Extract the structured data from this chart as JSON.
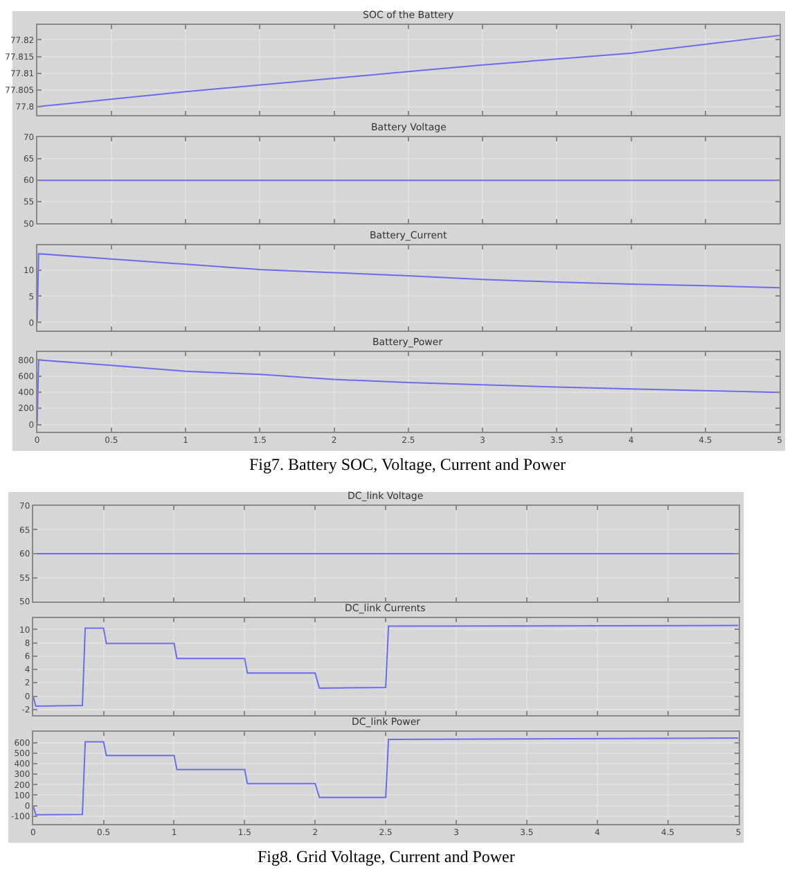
{
  "chart_data": [
    {
      "type": "line",
      "title": "SOC of the Battery",
      "x": [
        0,
        1,
        2,
        2.5,
        3,
        4,
        5
      ],
      "series": [
        {
          "color": "#6b6bf0",
          "values": [
            77.8,
            77.8045,
            77.8085,
            77.8105,
            77.8125,
            77.816,
            77.8213
          ]
        }
      ],
      "xlim": [
        0,
        5
      ],
      "xticks": [
        0,
        0.5,
        1,
        1.5,
        2,
        2.5,
        3,
        3.5,
        4,
        4.5,
        5
      ],
      "ylim": [
        77.7975,
        77.8245
      ],
      "yticks": [
        77.8,
        77.805,
        77.81,
        77.815,
        77.82
      ],
      "grid": true,
      "tick_labels": "y"
    },
    {
      "type": "line",
      "title": "Battery Voltage",
      "x": [
        0,
        5
      ],
      "series": [
        {
          "color": "#6b6bf0",
          "values": [
            60,
            60
          ]
        }
      ],
      "xlim": [
        0,
        5
      ],
      "xticks": [
        0,
        0.5,
        1,
        1.5,
        2,
        2.5,
        3,
        3.5,
        4,
        4.5,
        5
      ],
      "ylim": [
        50,
        70
      ],
      "yticks": [
        50,
        55,
        60,
        65,
        70
      ],
      "grid": true,
      "tick_labels": "y"
    },
    {
      "type": "line",
      "title": "Battery_Current",
      "x": [
        0,
        0.01,
        0.5,
        1,
        1.5,
        2,
        2.5,
        3,
        3.5,
        4,
        4.5,
        5
      ],
      "series": [
        {
          "color": "#6b6bf0",
          "values": [
            0,
            13.1,
            12.1,
            11.1,
            10.1,
            9.5,
            8.9,
            8.2,
            7.7,
            7.3,
            7.0,
            6.6
          ]
        }
      ],
      "xlim": [
        0,
        5
      ],
      "xticks": [
        0,
        0.5,
        1,
        1.5,
        2,
        2.5,
        3,
        3.5,
        4,
        4.5,
        5
      ],
      "ylim": [
        -1.5,
        14.7
      ],
      "yticks": [
        0,
        5,
        10
      ],
      "grid": true,
      "tick_labels": "y"
    },
    {
      "type": "line",
      "title": "Battery_Power",
      "x": [
        0,
        0.01,
        0.5,
        1,
        1.5,
        2,
        2.5,
        3,
        3.5,
        4,
        4.5,
        5
      ],
      "series": [
        {
          "color": "#6b6bf0",
          "values": [
            0,
            800,
            733,
            660,
            620,
            558,
            520,
            491,
            464,
            440,
            418,
            397
          ]
        }
      ],
      "xlim": [
        0,
        5
      ],
      "xticks": [
        0,
        0.5,
        1,
        1.5,
        2,
        2.5,
        3,
        3.5,
        4,
        4.5,
        5
      ],
      "ylim": [
        -90,
        895
      ],
      "yticks": [
        0,
        200,
        400,
        600,
        800
      ],
      "grid": true,
      "annotations": [
        "Fig7. Battery SOC, Voltage, Current and Power"
      ]
    },
    {
      "type": "line",
      "title": "DC_link Voltage",
      "x": [
        0,
        5
      ],
      "series": [
        {
          "color": "#6b6bf0",
          "values": [
            60,
            60
          ]
        }
      ],
      "xlim": [
        0,
        5
      ],
      "xticks": [
        0,
        0.5,
        1,
        1.5,
        2,
        2.5,
        3,
        3.5,
        4,
        4.5,
        5
      ],
      "ylim": [
        50,
        70
      ],
      "yticks": [
        50,
        55,
        60,
        65,
        70
      ],
      "grid": true,
      "tick_labels": "y"
    },
    {
      "type": "line",
      "title": "DC_link Currents",
      "x": [
        0,
        0.02,
        0.35,
        0.37,
        0.5,
        0.52,
        1,
        1.02,
        1.5,
        1.52,
        2,
        2.03,
        2.5,
        2.52,
        5
      ],
      "series": [
        {
          "color": "#6b6bf0",
          "values": [
            0,
            -1.5,
            -1.4,
            10.2,
            10.2,
            7.9,
            7.9,
            5.65,
            5.65,
            3.45,
            3.45,
            1.2,
            1.3,
            10.5,
            10.6
          ]
        }
      ],
      "xlim": [
        0,
        5
      ],
      "xticks": [
        0,
        0.5,
        1,
        1.5,
        2,
        2.5,
        3,
        3.5,
        4,
        4.5,
        5
      ],
      "ylim": [
        -2.9,
        11.7
      ],
      "yticks": [
        -2,
        0,
        2,
        4,
        6,
        8,
        10
      ],
      "grid": true,
      "tick_labels": "y"
    },
    {
      "type": "line",
      "title": "DC_link Power",
      "x": [
        0,
        0.02,
        0.35,
        0.37,
        0.5,
        0.52,
        1,
        1.02,
        1.5,
        1.52,
        2,
        2.03,
        2.5,
        2.52,
        5
      ],
      "series": [
        {
          "color": "#6b6bf0",
          "values": [
            0,
            -87,
            -85,
            609,
            609,
            479,
            479,
            344,
            344,
            210,
            210,
            78,
            78,
            632,
            645
          ]
        }
      ],
      "xlim": [
        0,
        5
      ],
      "xticks": [
        0,
        0.5,
        1,
        1.5,
        2,
        2.5,
        3,
        3.5,
        4,
        4.5,
        5
      ],
      "ylim": [
        -173,
        704
      ],
      "yticks": [
        -100,
        0,
        100,
        200,
        300,
        400,
        500,
        600
      ],
      "grid": true,
      "annotations": [
        "Fig8. Grid Voltage, Current and Power"
      ]
    }
  ]
}
